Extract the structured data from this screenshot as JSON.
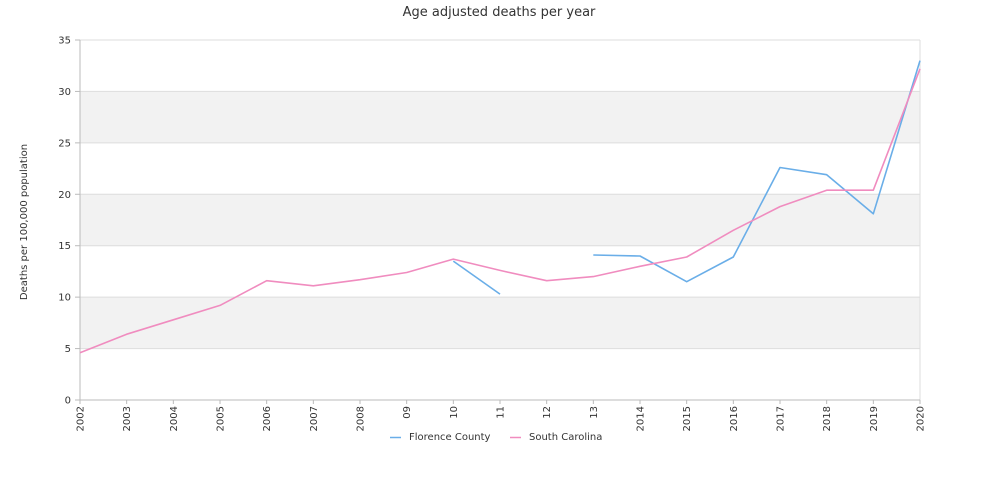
{
  "chart_data": {
    "type": "line",
    "title": "Age adjusted deaths per year",
    "xlabel": "",
    "ylabel": "Deaths per 100,000 population",
    "ylim": [
      0,
      35
    ],
    "yticks": [
      "0",
      "5",
      "10",
      "15",
      "20",
      "25",
      "30",
      "35"
    ],
    "categories": [
      "2002",
      "2003",
      "2004",
      "2005",
      "2006",
      "2007",
      "2008",
      "09",
      "10",
      "11",
      "12",
      "13",
      "2014",
      "2015",
      "2016",
      "2017",
      "2018",
      "2019",
      "2020"
    ],
    "grid": true,
    "legend_position": "bottom",
    "series": [
      {
        "name": "Florence County",
        "color": "#6aaee8",
        "values": [
          null,
          null,
          null,
          null,
          null,
          null,
          null,
          null,
          13.5,
          10.3,
          null,
          14.1,
          14.0,
          11.5,
          13.9,
          22.6,
          21.9,
          18.1,
          33.0
        ]
      },
      {
        "name": "South Carolina",
        "color": "#f08cbf",
        "values": [
          4.6,
          6.4,
          7.8,
          9.2,
          11.6,
          11.1,
          11.7,
          12.4,
          13.7,
          12.6,
          11.6,
          12.0,
          13.0,
          13.9,
          16.5,
          18.8,
          20.4,
          20.4,
          32.2
        ]
      }
    ]
  }
}
